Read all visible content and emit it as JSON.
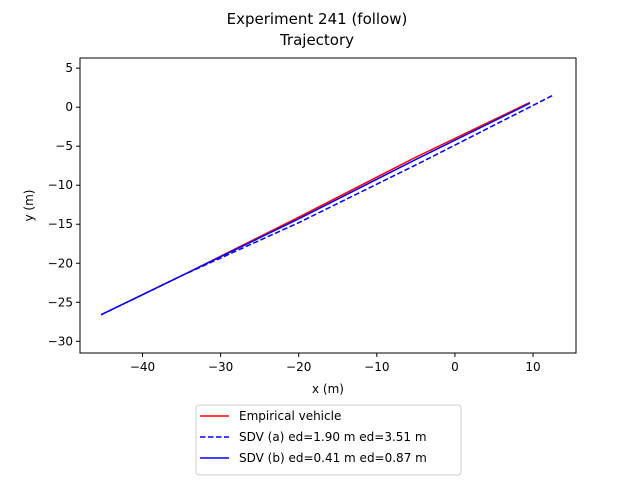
{
  "chart_data": {
    "type": "line",
    "title": "Experiment 241 (follow)",
    "subtitle": "Trajectory",
    "xlabel": "x (m)",
    "ylabel": "y (m)",
    "xlim": [
      -48.0,
      15.5
    ],
    "ylim": [
      -31.5,
      6.3
    ],
    "xticks": [
      -40,
      -30,
      -20,
      -10,
      0,
      10
    ],
    "xtick_labels": [
      "−40",
      "−30",
      "−20",
      "−10",
      "0",
      "10"
    ],
    "yticks": [
      5,
      0,
      -5,
      -10,
      -15,
      -20,
      -25,
      -30
    ],
    "ytick_labels": [
      "5",
      "0",
      "−5",
      "−10",
      "−15",
      "−20",
      "−25",
      "−30"
    ],
    "grid": false,
    "legend_position": "below the plot, centered",
    "series": [
      {
        "name": "Empirical vehicle",
        "color": "#ff0000",
        "style": "solid",
        "x": [
          -45.3,
          -35.0,
          -20.0,
          -5.0,
          9.6
        ],
        "y": [
          -26.6,
          -21.6,
          -14.1,
          -6.4,
          0.6
        ]
      },
      {
        "name": "SDV (a) ed=1.90 m ed=3.51 m",
        "color": "#0000ff",
        "style": "dashed",
        "x": [
          -45.3,
          -35.0,
          -20.0,
          -5.0,
          12.7
        ],
        "y": [
          -26.6,
          -21.6,
          -14.8,
          -7.4,
          1.6
        ]
      },
      {
        "name": "SDV (b) ed=0.41 m ed=0.87 m",
        "color": "#0000ff",
        "style": "solid",
        "x": [
          -45.3,
          -35.0,
          -20.0,
          -5.0,
          9.6
        ],
        "y": [
          -26.6,
          -21.6,
          -14.3,
          -6.7,
          0.5
        ]
      }
    ]
  }
}
